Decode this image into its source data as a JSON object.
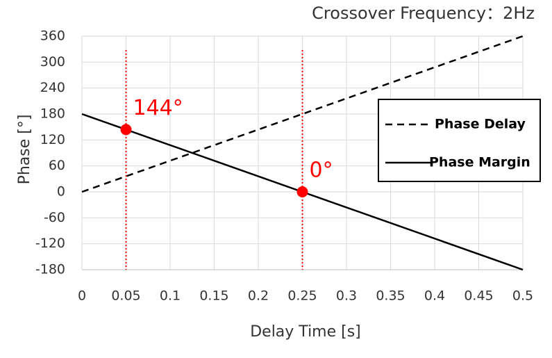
{
  "chart_data": {
    "type": "line",
    "title": "Crossover Frequency：2Hz",
    "x_label": "Delay Time [s]",
    "y_label": "Phase [°]",
    "x": [
      0,
      0.5
    ],
    "series": [
      {
        "name": "Phase Delay",
        "color": "#000000",
        "dash": true,
        "values": [
          0,
          360
        ]
      },
      {
        "name": "Phase Margin",
        "color": "#000000",
        "dash": false,
        "values": [
          180,
          -180
        ]
      }
    ],
    "annotations": [
      {
        "x": 0.05,
        "y": 144,
        "label": "144°"
      },
      {
        "x": 0.25,
        "y": 0,
        "label": "0°"
      }
    ],
    "annotation_color": "#ff0000",
    "xlim": [
      0,
      0.5
    ],
    "xticks": [
      0,
      0.05,
      0.1,
      0.15,
      0.2,
      0.25,
      0.3,
      0.35,
      0.4,
      0.45,
      0.5
    ],
    "ylim": [
      -180,
      360
    ],
    "yticks": [
      -180,
      -120,
      -60,
      0,
      60,
      120,
      180,
      240,
      300,
      360
    ],
    "grid": true,
    "legend": "right"
  }
}
